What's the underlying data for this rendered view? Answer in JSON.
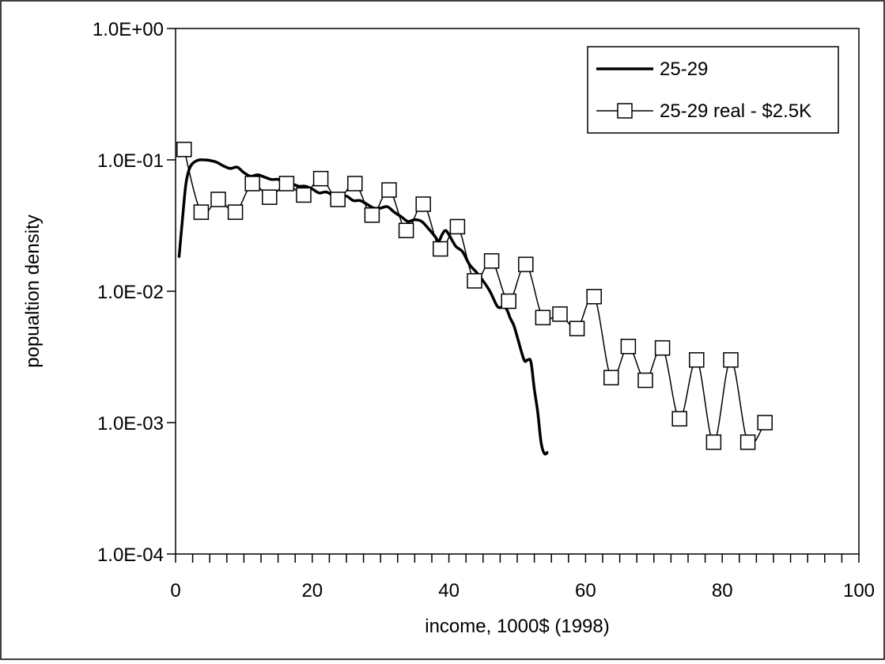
{
  "chart_data": {
    "type": "line",
    "title": "",
    "xlabel": "income, 1000$ (1998)",
    "ylabel": "popualtion density",
    "xlim": [
      0,
      100
    ],
    "ylim": [
      0.0001,
      1
    ],
    "yscale": "log",
    "x_ticks": [
      0,
      20,
      40,
      60,
      80,
      100
    ],
    "x_tick_labels": [
      "0",
      "20",
      "40",
      "60",
      "80",
      "100"
    ],
    "x_minor_step": 2.5,
    "y_ticks": [
      1,
      0.1,
      0.01,
      0.001,
      0.0001
    ],
    "y_tick_labels": [
      "1.0E+00",
      "1.0E-01",
      "1.0E-02",
      "1.0E-03",
      "1.0E-04"
    ],
    "grid": false,
    "legend_position": "top-right",
    "series": [
      {
        "name": "25-29",
        "style": "thick-line",
        "color": "#000000",
        "x": [
          0.5,
          1,
          1.5,
          2,
          2.5,
          3,
          3.5,
          4,
          5,
          6,
          7,
          8,
          9,
          10,
          11,
          12,
          13,
          14,
          15,
          16,
          17,
          18,
          19,
          20,
          21,
          22,
          23,
          24,
          25,
          26,
          27,
          28,
          29,
          30,
          31,
          32,
          33,
          34,
          35,
          36,
          37,
          38,
          38.5,
          39,
          39.5,
          40,
          41,
          42,
          43,
          44,
          45,
          46,
          47,
          47.5,
          48,
          48.5,
          49,
          49.5,
          50,
          51,
          51.5,
          52,
          52.5,
          53,
          53.5,
          54,
          54.5
        ],
        "y": [
          0.018,
          0.035,
          0.065,
          0.085,
          0.094,
          0.098,
          0.1,
          0.1,
          0.099,
          0.096,
          0.09,
          0.086,
          0.088,
          0.08,
          0.075,
          0.077,
          0.074,
          0.071,
          0.071,
          0.068,
          0.066,
          0.063,
          0.063,
          0.06,
          0.056,
          0.057,
          0.054,
          0.052,
          0.053,
          0.049,
          0.049,
          0.046,
          0.043,
          0.043,
          0.044,
          0.04,
          0.037,
          0.034,
          0.035,
          0.034,
          0.03,
          0.026,
          0.024,
          0.027,
          0.029,
          0.027,
          0.022,
          0.02,
          0.016,
          0.014,
          0.012,
          0.01,
          0.0078,
          0.0075,
          0.0077,
          0.0072,
          0.0062,
          0.0055,
          0.0045,
          0.003,
          0.003,
          0.0029,
          0.0018,
          0.0012,
          0.0007,
          0.00058,
          0.0006
        ]
      },
      {
        "name": "25-29 real - $2.5K",
        "style": "thin-line-square-markers",
        "color": "#000000",
        "x": [
          1.25,
          3.75,
          6.25,
          8.75,
          11.25,
          13.75,
          16.25,
          18.75,
          21.25,
          23.75,
          26.25,
          28.75,
          31.25,
          33.75,
          36.25,
          38.75,
          41.25,
          43.75,
          46.25,
          48.75,
          51.25,
          53.75,
          56.25,
          58.75,
          61.25,
          63.75,
          66.25,
          68.75,
          71.25,
          73.75,
          76.25,
          78.75,
          81.25,
          83.75,
          86.25
        ],
        "y": [
          0.12,
          0.04,
          0.05,
          0.04,
          0.066,
          0.052,
          0.066,
          0.054,
          0.072,
          0.05,
          0.066,
          0.038,
          0.059,
          0.029,
          0.046,
          0.021,
          0.031,
          0.012,
          0.017,
          0.0084,
          0.016,
          0.0063,
          0.0067,
          0.0052,
          0.0091,
          0.0022,
          0.0038,
          0.0021,
          0.0037,
          0.00107,
          0.003,
          0.00071,
          0.003,
          0.00071,
          0.001
        ]
      }
    ]
  }
}
